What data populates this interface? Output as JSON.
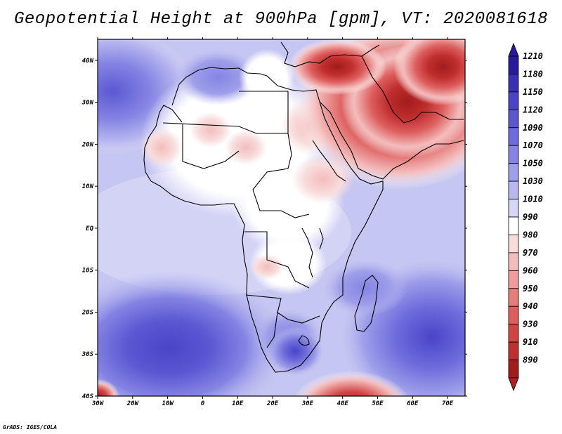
{
  "title": "Geopotential Height at 900hPa [gpm], VT: 2020081618",
  "credit": "GrADS: IGES/COLA",
  "map": {
    "region": "Africa and Middle East",
    "variable": "Geopotential Height",
    "level": "900hPa",
    "units": "gpm",
    "valid_time": "2020081618",
    "lon_range": [
      -30,
      75
    ],
    "lat_range": [
      -40,
      45
    ]
  },
  "axes": {
    "lon_ticks": [
      {
        "value": -30,
        "label": "30W"
      },
      {
        "value": -20,
        "label": "20W"
      },
      {
        "value": -10,
        "label": "10W"
      },
      {
        "value": 0,
        "label": "0"
      },
      {
        "value": 10,
        "label": "10E"
      },
      {
        "value": 20,
        "label": "20E"
      },
      {
        "value": 30,
        "label": "30E"
      },
      {
        "value": 40,
        "label": "40E"
      },
      {
        "value": 50,
        "label": "50E"
      },
      {
        "value": 60,
        "label": "60E"
      },
      {
        "value": 70,
        "label": "70E"
      }
    ],
    "lat_ticks": [
      {
        "value": 40,
        "label": "40N"
      },
      {
        "value": 30,
        "label": "30N"
      },
      {
        "value": 20,
        "label": "20N"
      },
      {
        "value": 10,
        "label": "10N"
      },
      {
        "value": 0,
        "label": "EQ"
      },
      {
        "value": -10,
        "label": "10S"
      },
      {
        "value": -20,
        "label": "20S"
      },
      {
        "value": -30,
        "label": "30S"
      },
      {
        "value": -40,
        "label": "40S"
      }
    ]
  },
  "colorbar": {
    "levels": [
      {
        "label": "1210",
        "color": "#281a9e"
      },
      {
        "label": "1180",
        "color": "#3a30b5"
      },
      {
        "label": "1150",
        "color": "#4a44c8"
      },
      {
        "label": "1120",
        "color": "#5b58d2"
      },
      {
        "label": "1090",
        "color": "#6e6cdc"
      },
      {
        "label": "1070",
        "color": "#8584e4"
      },
      {
        "label": "1050",
        "color": "#9e9eea"
      },
      {
        "label": "1030",
        "color": "#b8b8f0"
      },
      {
        "label": "1010",
        "color": "#d6d6f6"
      },
      {
        "label": "990",
        "color": "#ffffff"
      },
      {
        "label": "980",
        "color": "#f8dcdc"
      },
      {
        "label": "970",
        "color": "#f4bcbc"
      },
      {
        "label": "960",
        "color": "#ee9c9c"
      },
      {
        "label": "950",
        "color": "#e67c7c"
      },
      {
        "label": "940",
        "color": "#de5e5e"
      },
      {
        "label": "930",
        "color": "#d24444"
      },
      {
        "label": "910",
        "color": "#c02e2e"
      },
      {
        "label": "890",
        "color": "#a21c1c"
      }
    ],
    "top_arrow_color": "#281a9e",
    "bottom_arrow_color": "#b02020"
  }
}
